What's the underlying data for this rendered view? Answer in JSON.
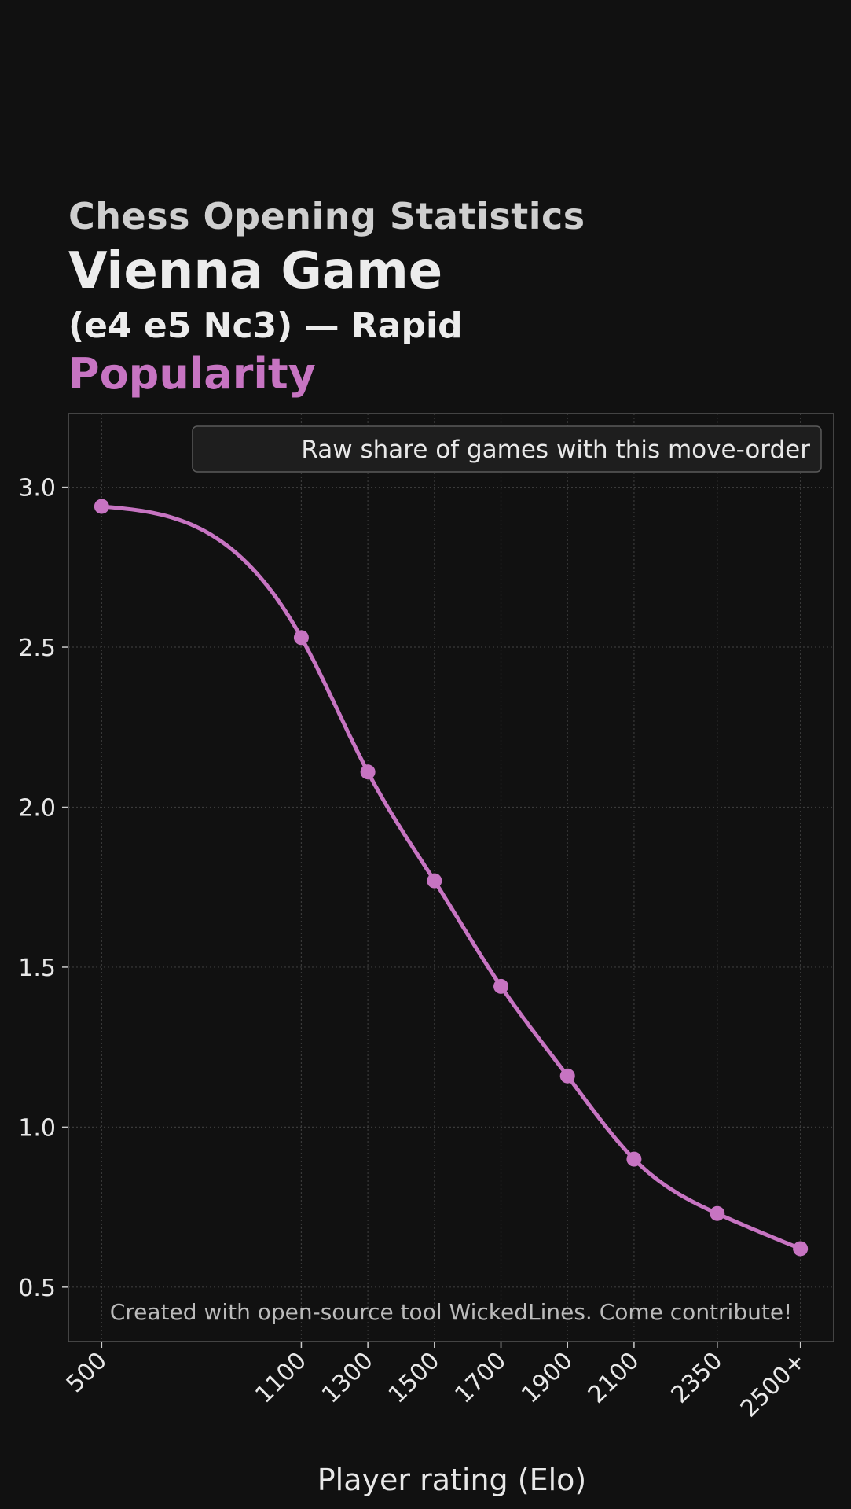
{
  "header": {
    "supertitle": "Chess Opening Statistics",
    "title": "Vienna Game",
    "subtitle": "(e4 e5 Nc3) — Rapid",
    "metric": "Popularity"
  },
  "colors": {
    "background": "#111111",
    "accent": "#c774c2",
    "grid": "#3a3a3a",
    "text": "#e8e8e8"
  },
  "chart_data": {
    "type": "line",
    "x": [
      500,
      1100,
      1300,
      1500,
      1700,
      1900,
      2100,
      2350,
      2600
    ],
    "xtick_labels": [
      "500",
      "1100",
      "1300",
      "1500",
      "1700",
      "1900",
      "2100",
      "2350",
      "2500+"
    ],
    "series": [
      {
        "name": "Raw share of games with this move-order",
        "values": [
          2.94,
          2.53,
          2.11,
          1.77,
          1.44,
          1.16,
          0.9,
          0.73,
          0.62
        ]
      }
    ],
    "xlabel": "Player rating (Elo)",
    "ylabel": "",
    "xlim": [
      400,
      2700
    ],
    "ylim": [
      0.33,
      3.23
    ],
    "yticks": [
      0.5,
      1.0,
      1.5,
      2.0,
      2.5,
      3.0
    ],
    "ytick_labels": [
      "0.5",
      "1.0",
      "1.5",
      "2.0",
      "2.5",
      "3.0"
    ],
    "grid": true,
    "legend": "top-right",
    "annotation": "Created with open-source tool WickedLines. Come contribute!"
  }
}
